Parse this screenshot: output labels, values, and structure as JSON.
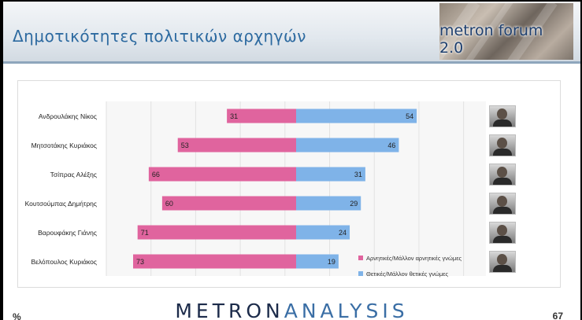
{
  "header": {
    "title": "Δημοτικότητες πολιτικών αρχηγών",
    "brand": "metron forum 2.0"
  },
  "footer": {
    "logo_dark": "METRON",
    "logo_light": "ANALYSIS",
    "percent_sign": "%",
    "page_number": "67"
  },
  "colors": {
    "negative": "#e0649e",
    "positive": "#7fb3e8",
    "title": "#2d6aa0"
  },
  "chart_data": {
    "type": "bar",
    "orientation": "horizontal-diverging",
    "categories": [
      "Ανδρουλάκης Νίκος",
      "Μητσοτάκης Κυριάκος",
      "Τσίπρας Αλέξης",
      "Κουτσούμπας Δημήτρης",
      "Βαρουφάκης Γιάνης",
      "Βελόπουλος Κυριάκος"
    ],
    "series": [
      {
        "name": "Αρνητικές/Μάλλον αρνητικές γνώμες",
        "values": [
          31,
          53,
          66,
          60,
          71,
          73
        ],
        "color": "#e0649e",
        "direction": "left"
      },
      {
        "name": "Θετικές/Μάλλον θετικές γνώμες",
        "values": [
          54,
          46,
          31,
          29,
          24,
          19
        ],
        "color": "#7fb3e8",
        "direction": "right"
      }
    ],
    "xlim": [
      -85,
      85
    ],
    "grid": true,
    "legend": "bottom-right"
  }
}
